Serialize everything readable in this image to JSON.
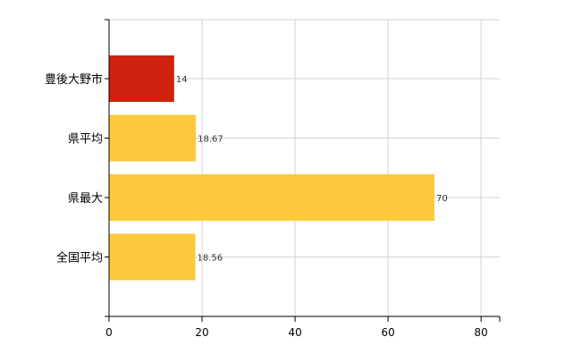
{
  "chart_data": {
    "type": "bar",
    "orientation": "horizontal",
    "categories": [
      "豊後大野市",
      "県平均",
      "県最大",
      "全国平均"
    ],
    "values": [
      14,
      18.67,
      70,
      18.56
    ],
    "data_labels": [
      "14",
      "18.67",
      "70",
      "18.56"
    ],
    "colors": [
      "#d0230f",
      "#fbc93b",
      "#fbc93b",
      "#fbc93b"
    ],
    "xlim": [
      0,
      84
    ],
    "xticks": [
      0,
      20,
      40,
      60,
      80
    ],
    "xtick_labels": [
      "0",
      "20",
      "40",
      "60",
      "80"
    ],
    "title": "",
    "xlabel": "",
    "ylabel": "",
    "grid": true,
    "legend": "none"
  },
  "colors": {
    "highlight": "#d0230f",
    "default": "#fbc93b",
    "grid": "#d3d3d3",
    "axis": "#000000"
  }
}
